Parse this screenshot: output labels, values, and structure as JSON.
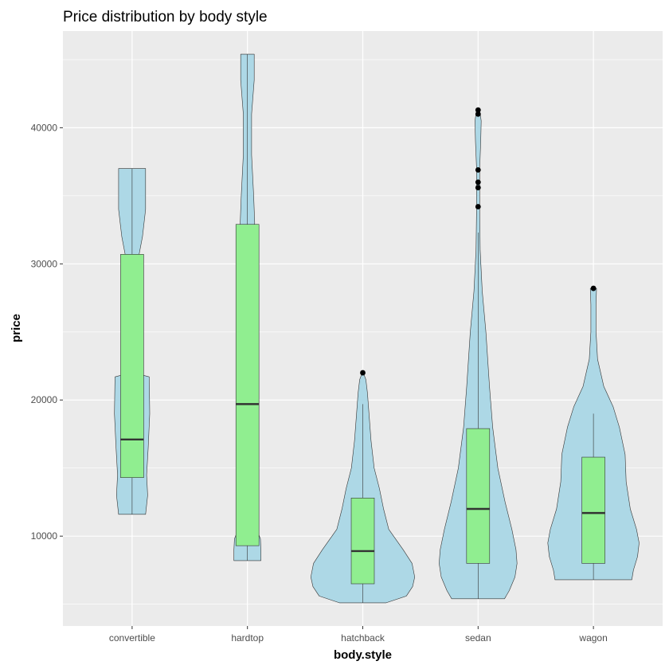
{
  "chart_data": {
    "type": "violin",
    "title": "Price distribution by body style",
    "xlabel": "body.style",
    "ylabel": "price",
    "categories": [
      "convertible",
      "hardtop",
      "hatchback",
      "sedan",
      "wagon"
    ],
    "ylim": [
      3400,
      47100
    ],
    "y_ticks": [
      10000,
      20000,
      30000,
      40000
    ],
    "y_tick_labels": [
      "10000",
      "20000",
      "30000",
      "40000"
    ],
    "grid": true,
    "colors": {
      "panel": "#ebebeb",
      "grid_major": "#ffffff",
      "violin_fill": "#add8e6",
      "box_fill": "#90ee90",
      "outline": "#333333",
      "median": "#333333",
      "outlier": "#000000"
    },
    "violins": [
      {
        "category": "convertible",
        "min": 11600,
        "max": 37000,
        "profile": [
          [
            11600,
            0.26
          ],
          [
            13000,
            0.3
          ],
          [
            14500,
            0.28
          ],
          [
            16500,
            0.31
          ],
          [
            19000,
            0.34
          ],
          [
            21700,
            0.33
          ],
          [
            22000,
            0.03
          ],
          [
            25000,
            0.03
          ],
          [
            27000,
            0.03
          ],
          [
            30000,
            0.1
          ],
          [
            32000,
            0.2
          ],
          [
            34000,
            0.26
          ],
          [
            37000,
            0.26
          ]
        ]
      },
      {
        "category": "hardtop",
        "min": 8200,
        "max": 45400,
        "profile": [
          [
            8200,
            0.26
          ],
          [
            9000,
            0.26
          ],
          [
            9800,
            0.25
          ],
          [
            12000,
            0.03
          ],
          [
            18000,
            0.03
          ],
          [
            25000,
            0.03
          ],
          [
            29000,
            0.03
          ],
          [
            31000,
            0.1
          ],
          [
            33000,
            0.14
          ],
          [
            35000,
            0.12
          ],
          [
            38000,
            0.08
          ],
          [
            41000,
            0.08
          ],
          [
            43500,
            0.13
          ],
          [
            45400,
            0.13
          ]
        ]
      },
      {
        "category": "hatchback",
        "min": 5100,
        "max": 22000,
        "profile": [
          [
            5100,
            0.45
          ],
          [
            5600,
            0.84
          ],
          [
            6300,
            0.96
          ],
          [
            7000,
            1.0
          ],
          [
            8000,
            0.95
          ],
          [
            9000,
            0.78
          ],
          [
            10500,
            0.5
          ],
          [
            12000,
            0.4
          ],
          [
            13500,
            0.32
          ],
          [
            15000,
            0.22
          ],
          [
            17000,
            0.16
          ],
          [
            19000,
            0.12
          ],
          [
            20500,
            0.09
          ],
          [
            21500,
            0.06
          ],
          [
            22000,
            0.01
          ]
        ]
      },
      {
        "category": "sedan",
        "min": 5400,
        "max": 41300,
        "profile": [
          [
            5400,
            0.51
          ],
          [
            6000,
            0.6
          ],
          [
            7000,
            0.71
          ],
          [
            8000,
            0.75
          ],
          [
            9000,
            0.73
          ],
          [
            10500,
            0.65
          ],
          [
            12500,
            0.52
          ],
          [
            15000,
            0.38
          ],
          [
            18000,
            0.28
          ],
          [
            21000,
            0.22
          ],
          [
            25000,
            0.15
          ],
          [
            28000,
            0.08
          ],
          [
            31000,
            0.04
          ],
          [
            34000,
            0.03
          ],
          [
            37000,
            0.03
          ],
          [
            39000,
            0.05
          ],
          [
            40500,
            0.06
          ],
          [
            41300,
            0.03
          ]
        ]
      },
      {
        "category": "wagon",
        "min": 6800,
        "max": 28200,
        "profile": [
          [
            6800,
            0.74
          ],
          [
            7500,
            0.77
          ],
          [
            8500,
            0.85
          ],
          [
            9500,
            0.88
          ],
          [
            10500,
            0.83
          ],
          [
            12000,
            0.71
          ],
          [
            14000,
            0.63
          ],
          [
            16000,
            0.61
          ],
          [
            18000,
            0.5
          ],
          [
            19500,
            0.38
          ],
          [
            21000,
            0.2
          ],
          [
            23000,
            0.08
          ],
          [
            25000,
            0.05
          ],
          [
            27000,
            0.05
          ],
          [
            28200,
            0.06
          ]
        ]
      }
    ],
    "boxes": [
      {
        "category": "convertible",
        "lower_whisker": 11600,
        "q1": 14300,
        "median": 17100,
        "q3": 30700,
        "upper_whisker": 37000,
        "outliers": []
      },
      {
        "category": "hardtop",
        "lower_whisker": 8200,
        "q1": 9300,
        "median": 19700,
        "q3": 32900,
        "upper_whisker": 45400,
        "outliers": []
      },
      {
        "category": "hatchback",
        "lower_whisker": 5100,
        "q1": 6500,
        "median": 8900,
        "q3": 12800,
        "upper_whisker": 19700,
        "outliers": [
          22000
        ]
      },
      {
        "category": "sedan",
        "lower_whisker": 5400,
        "q1": 8000,
        "median": 12000,
        "q3": 17900,
        "upper_whisker": 32300,
        "outliers": [
          34200,
          35600,
          36000,
          36900,
          41000,
          41300
        ]
      },
      {
        "category": "wagon",
        "lower_whisker": 6800,
        "q1": 8000,
        "median": 11700,
        "q3": 15800,
        "upper_whisker": 19000,
        "outliers": [
          28200
        ]
      }
    ]
  }
}
